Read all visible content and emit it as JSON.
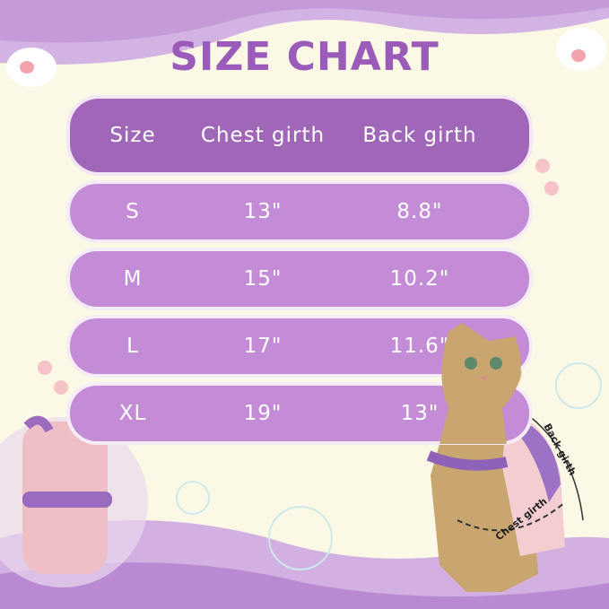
{
  "title": "SIZE CHART",
  "table": {
    "headers": [
      "Size",
      "Chest girth",
      "Back girth"
    ],
    "rows": [
      {
        "size": "S",
        "chest": "13\"",
        "back": "8.8\""
      },
      {
        "size": "M",
        "chest": "15\"",
        "back": "10.2\""
      },
      {
        "size": "L",
        "chest": "17\"",
        "back": "11.6\""
      },
      {
        "size": "XL",
        "chest": "19\"",
        "back": "13\""
      }
    ]
  },
  "annotations": {
    "back_girth": "Back girth",
    "chest_girth": "Chest girth"
  },
  "colors": {
    "title": "#9b5cb9",
    "header_row": "#a066b8",
    "data_row": "#c48bd7",
    "background": "#fbf8e6"
  }
}
